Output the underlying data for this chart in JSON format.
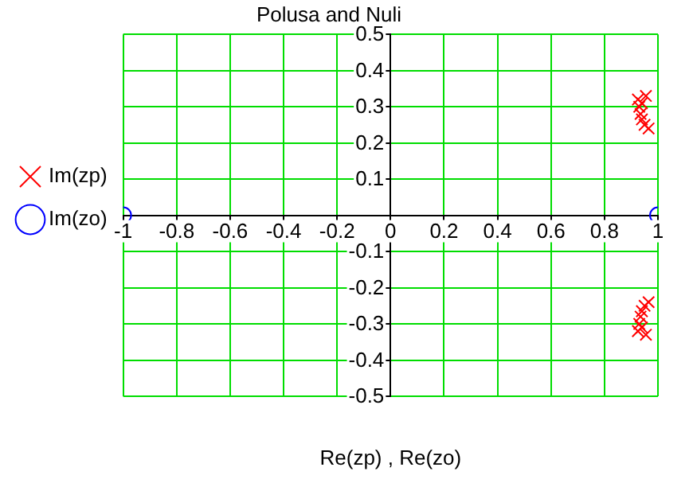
{
  "chart_data": {
    "type": "scatter",
    "title": "Polusa and Nuli",
    "xlabel": "Re(zp) , Re(zo)",
    "series": [
      {
        "name": "Im(zp)",
        "color": "#ff0000",
        "marker": "cross",
        "x": [
          0.925,
          0.93,
          0.935,
          0.94,
          0.95,
          0.965,
          0.94,
          0.955,
          0.925,
          0.93,
          0.935,
          0.94,
          0.95,
          0.965,
          0.94,
          0.955
        ],
        "values": [
          0.32,
          0.3,
          0.28,
          0.265,
          0.25,
          0.24,
          0.31,
          0.33,
          -0.32,
          -0.3,
          -0.28,
          -0.265,
          -0.25,
          -0.24,
          -0.31,
          -0.33
        ]
      },
      {
        "name": "Im(zo)",
        "color": "#0000ff",
        "marker": "circle",
        "x": [
          -1,
          1
        ],
        "values": [
          0,
          0
        ]
      }
    ],
    "xlim": [
      -1,
      1
    ],
    "xticks": [
      -1,
      -0.8,
      -0.6,
      -0.4,
      -0.2,
      0,
      0.2,
      0.4,
      0.6,
      0.8,
      1
    ],
    "ylim": [
      -0.5,
      0.5
    ],
    "yticks": [
      -0.5,
      -0.4,
      -0.3,
      -0.2,
      -0.1,
      0.1,
      0.2,
      0.3,
      0.4,
      0.5
    ],
    "grid": true,
    "legend": "left"
  }
}
